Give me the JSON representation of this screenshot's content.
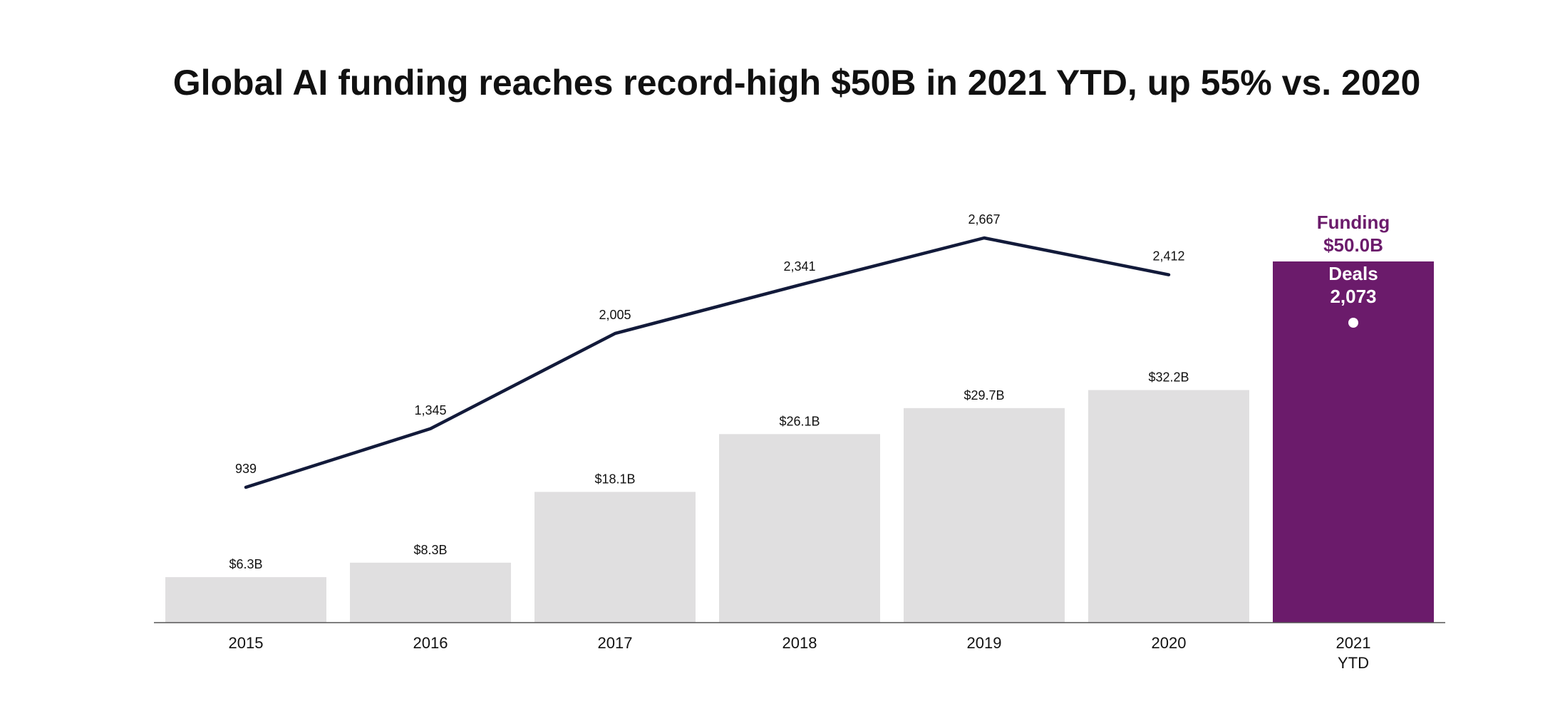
{
  "chart_data": {
    "type": "bar",
    "title": "Global AI funding reaches record-high $50B in 2021 YTD, up 55% vs. 2020",
    "xlabel": "",
    "ylabel": "",
    "categories": [
      [
        "2015"
      ],
      [
        "2016"
      ],
      [
        "2017"
      ],
      [
        "2018"
      ],
      [
        "2019"
      ],
      [
        "2020"
      ],
      [
        "2021",
        "YTD"
      ]
    ],
    "series": [
      {
        "name": "Funding",
        "type": "bar",
        "values": [
          6.3,
          8.3,
          18.1,
          26.1,
          29.7,
          32.2,
          50.0
        ],
        "labels": [
          "$6.3B",
          "$8.3B",
          "$18.1B",
          "$26.1B",
          "$29.7B",
          "$32.2B",
          "$50.0B"
        ]
      },
      {
        "name": "Deals",
        "type": "line",
        "values": [
          939,
          1345,
          2005,
          2341,
          2667,
          2412,
          2073
        ],
        "labels": [
          "939",
          "1,345",
          "2,005",
          "2,341",
          "2,667",
          "2,412",
          "2,073"
        ]
      }
    ],
    "ylim_funding": [
      0,
      50
    ],
    "ylim_deals": [
      0,
      2667
    ],
    "grid": false,
    "legend": "none",
    "highlight": {
      "index": 6,
      "funding_title": "Funding",
      "funding_value": "$50.0B",
      "deals_title": "Deals",
      "deals_value": "2,073"
    },
    "colors": {
      "bar": "#e0dfe0",
      "highlight_bar": "#6b1b6b",
      "line": "#121a3a",
      "highlight_text": "#6b1b6b",
      "highlight_inner_text": "#ffffff",
      "axis": "#555555"
    }
  }
}
